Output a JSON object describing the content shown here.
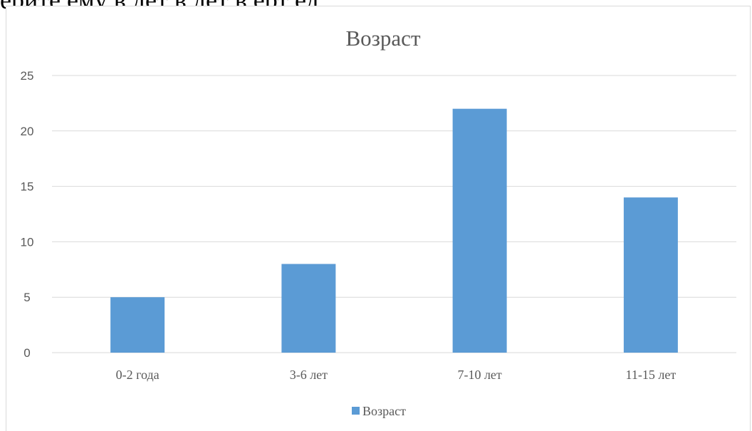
{
  "page": {
    "top_text": "ерите   ему       в   дет    в   дет      в ерт   ед"
  },
  "chart_data": {
    "type": "bar",
    "title": "Возраст",
    "categories": [
      "0-2 года",
      "3-6 лет",
      "7-10 лет",
      "11-15 лет"
    ],
    "series": [
      {
        "name": "Возраст",
        "values": [
          5,
          8,
          22,
          14
        ],
        "color": "#5b9bd5"
      }
    ],
    "ylim": [
      0,
      25
    ],
    "yticks": [
      0,
      5,
      10,
      15,
      20,
      25
    ],
    "grid": true,
    "legend": "bottom",
    "xlabel": "",
    "ylabel": ""
  }
}
